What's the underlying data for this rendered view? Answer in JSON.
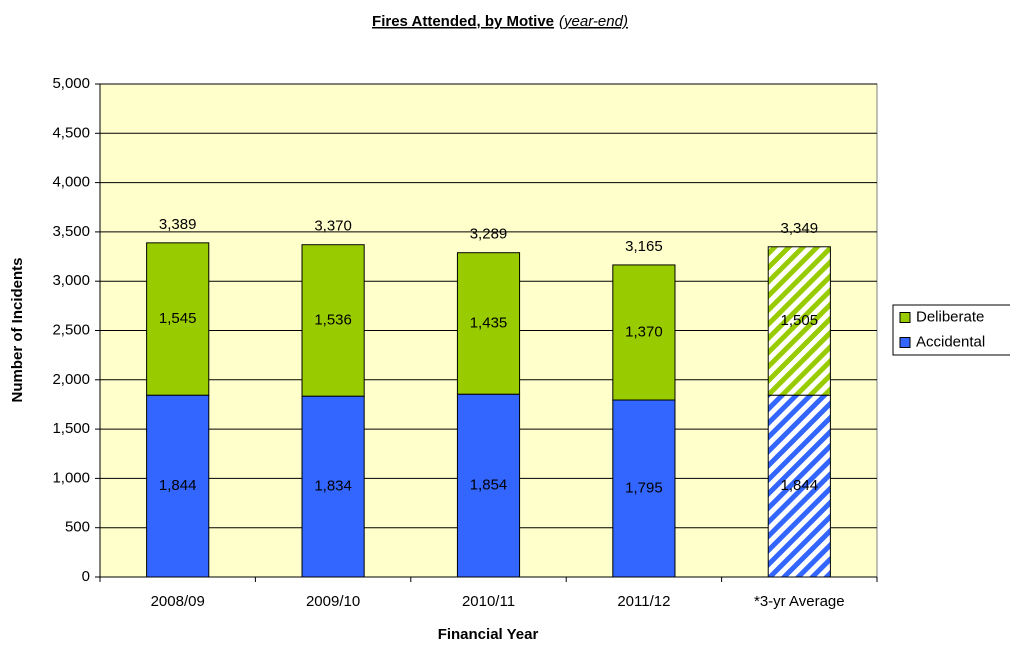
{
  "chart_data": {
    "type": "stacked_bar",
    "title": "Fires Attended, by Motive",
    "subtitle": "(year-end)",
    "x_label": "Financial Year",
    "y_label": "Number of Incidents",
    "categories": [
      "2008/09",
      "2009/10",
      "2010/11",
      "2011/12",
      "*3-yr Average"
    ],
    "hatch": [
      false,
      false,
      false,
      false,
      true
    ],
    "series": [
      {
        "name": "Accidental",
        "color": "#3366ff",
        "values": [
          1844,
          1834,
          1854,
          1795,
          1844
        ],
        "value_labels": [
          "1,844",
          "1,834",
          "1,854",
          "1,795",
          "1,844"
        ]
      },
      {
        "name": "Deliberate",
        "color": "#99cc00",
        "values": [
          1545,
          1536,
          1435,
          1370,
          1505
        ],
        "value_labels": [
          "1,545",
          "1,536",
          "1,435",
          "1,370",
          "1,505"
        ]
      }
    ],
    "totals": {
      "values": [
        3389,
        3370,
        3289,
        3165,
        3349
      ],
      "value_labels": [
        "3,389",
        "3,370",
        "3,289",
        "3,165",
        "3,349"
      ]
    },
    "ylim": [
      0,
      5000
    ],
    "yticks": [
      0,
      500,
      {
        "value": 1000,
        "label": "1,000"
      },
      {
        "value": 1500,
        "label": "1,500"
      },
      {
        "value": 2000,
        "label": "2,000"
      },
      {
        "value": 2500,
        "label": "2,500"
      },
      {
        "value": 3000,
        "label": "3,000"
      },
      {
        "value": 3500,
        "label": "3,500"
      },
      {
        "value": 4000,
        "label": "4,000"
      },
      {
        "value": 4500,
        "label": "4,500"
      },
      {
        "value": 5000,
        "label": "5,000"
      }
    ],
    "grid": true,
    "legend": "right",
    "plot_background": "#ffffcc"
  }
}
